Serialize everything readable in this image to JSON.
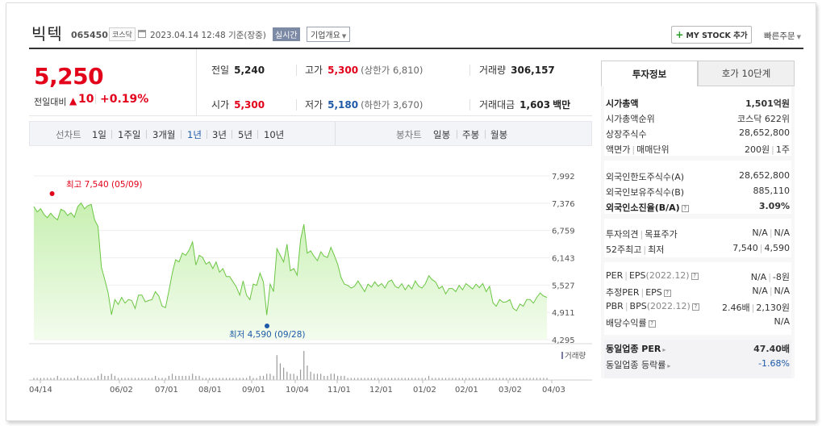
{
  "header": {
    "stock_name": "빅텍",
    "stock_code": "065450",
    "market": "코스닥",
    "datetime": "2023.04.14 12:48  기준(장중)",
    "realtime_badge": "실시간",
    "company_info_btn": "기업개요",
    "mystock_btn": "MY STOCK 추가",
    "quick_order_btn": "빠른주문"
  },
  "price": {
    "current": "5,250",
    "change_label": "전일대비",
    "change_value": "10",
    "change_rate": "+0.19%"
  },
  "stats": {
    "prev_close_label": "전일",
    "prev_close": "5,240",
    "high_label": "고가",
    "high": "5,300",
    "upper_limit": "(상한가 6,810)",
    "volume_label": "거래량",
    "volume": "306,157",
    "open_label": "시가",
    "open": "5,300",
    "low_label": "저가",
    "low": "5,180",
    "lower_limit": "(하한가 3,670)",
    "trade_value_label": "거래대금",
    "trade_value": "1,603",
    "trade_value_unit": "백만"
  },
  "chart_tabs": {
    "line_label": "선차트",
    "line_periods": [
      "1일",
      "1주일",
      "3개월",
      "1년",
      "3년",
      "5년",
      "10년"
    ],
    "active_period": "1년",
    "candle_label": "봉차트",
    "candle_periods": [
      "일봉",
      "주봉",
      "월봉"
    ]
  },
  "chart_data": {
    "type": "area",
    "series": [
      {
        "values": [
          7300,
          7180,
          7250,
          7120,
          7050,
          7150,
          7060,
          7000,
          7240,
          7200,
          7100,
          7160,
          7060,
          7300,
          7380,
          7250,
          7320,
          7350,
          7000,
          6850,
          5930,
          5650,
          5350,
          4860,
          5200,
          5090,
          5250,
          5120,
          5200,
          5180,
          5000,
          5300,
          5300,
          5150,
          5180,
          5200,
          5380,
          5280,
          5050,
          5020,
          5400,
          5800,
          6100,
          6050,
          6250,
          6200,
          6320,
          6500,
          5980,
          6200,
          6150,
          6000,
          6050,
          5900,
          6050,
          5820,
          5900,
          5720,
          5720,
          5600,
          5480,
          5300,
          5620,
          5300,
          5200,
          5550,
          5520,
          5800,
          5600,
          4850,
          5550,
          5380,
          6350,
          6200,
          6050,
          6450,
          5850,
          5900,
          5750,
          6550,
          6900,
          6250,
          6300,
          6180,
          6080,
          6280,
          6180,
          6150,
          6380,
          6200,
          6000,
          5700,
          5550,
          5520,
          5460,
          5500,
          5620,
          5500,
          5380,
          5550,
          5480,
          5600,
          5500,
          5560,
          5460,
          5600,
          5640,
          5500,
          5460,
          5560,
          5420,
          5530,
          5440,
          5620,
          5500,
          5460,
          5560,
          5740,
          5650,
          5600,
          5450,
          5500,
          5330,
          5450,
          5450,
          5380,
          5520,
          5420,
          5560,
          5500,
          5440,
          5550,
          5470,
          5560,
          5380,
          5500,
          5130,
          5050,
          5200,
          5140,
          5150,
          5200,
          5000,
          4950,
          5100,
          5050,
          5200,
          5200,
          5120,
          5250,
          5350,
          5280,
          5250
        ]
      }
    ],
    "volume": [
      1,
      1,
      1,
      1,
      1,
      1,
      1,
      2,
      1,
      1,
      1,
      1,
      1,
      2,
      1,
      1,
      1,
      1,
      1,
      2,
      3,
      2,
      2,
      3,
      2,
      1,
      1,
      1,
      1,
      1,
      1,
      1,
      1,
      1,
      1,
      1,
      2,
      1,
      1,
      1,
      2,
      3,
      2,
      2,
      2,
      2,
      2,
      3,
      2,
      2,
      1,
      1,
      1,
      1,
      1,
      1,
      1,
      1,
      1,
      1,
      1,
      1,
      1,
      1,
      2,
      1,
      1,
      2,
      2,
      3,
      3,
      2,
      12,
      8,
      6,
      4,
      3,
      3,
      2,
      5,
      14,
      7,
      4,
      3,
      3,
      3,
      2,
      2,
      3,
      3,
      2,
      2,
      2,
      1,
      1,
      1,
      1,
      1,
      1,
      1,
      1,
      1,
      1,
      1,
      1,
      1,
      1,
      1,
      1,
      1,
      1,
      1,
      1,
      1,
      1,
      1,
      1,
      2,
      1,
      1,
      1,
      1,
      1,
      1,
      1,
      1,
      1,
      1,
      1,
      1,
      1,
      1,
      1,
      1,
      1,
      1,
      1,
      1,
      1,
      1,
      1,
      1,
      1,
      1,
      1,
      1,
      1,
      1,
      1,
      1,
      1,
      1,
      1
    ],
    "ylim": [
      4295,
      7992
    ],
    "y_ticks": [
      "7,992",
      "7,376",
      "6,759",
      "6,143",
      "5,527",
      "4,911",
      "4,295"
    ],
    "x_ticks": [
      "04/14",
      "06/02",
      "07/01",
      "08/01",
      "09/01",
      "10/04",
      "11/01",
      "12/01",
      "01/02",
      "02/01",
      "03/02",
      "04/03"
    ],
    "max_label": "최고 7,540 (05/09)",
    "min_label": "최저 4,590 (09/28)",
    "volume_label": "거래량",
    "colors": {
      "line": "#6cc644",
      "fill_top": "#c8f0b2",
      "fill_bottom": "#f3fcee",
      "max": "#e2001a",
      "min": "#1e5aa8"
    }
  },
  "invest_info": {
    "tab_active": "투자정보",
    "tab_inactive": "호가 10단계",
    "market_cap_label": "시가총액",
    "market_cap": "1,501억원",
    "market_cap_rank_label": "시가총액순위",
    "market_cap_rank": "코스닥 622위",
    "shares_label": "상장주식수",
    "shares": "28,652,800",
    "par_label": "액면가",
    "unit_label": "매매단위",
    "par": "200원",
    "unit": "1주",
    "foreign_limit_label": "외국인한도주식수(A)",
    "foreign_limit": "28,652,800",
    "foreign_hold_label": "외국인보유주식수(B)",
    "foreign_hold": "885,110",
    "foreign_rate_label": "외국인소진율(B/A)",
    "foreign_rate": "3.09%",
    "opinion_label": "투자의견",
    "target_label": "목표주가",
    "opinion": "N/A",
    "target": "N/A",
    "w52_high_label": "52주최고",
    "w52_low_label": "최저",
    "w52_high": "7,540",
    "w52_low": "4,590",
    "per_label": "PER",
    "eps_label": "EPS",
    "eps_period": "(2022.12)",
    "per": "N/A",
    "eps": "-8원",
    "est_per_label": "추정PER",
    "est_eps_label": "EPS",
    "est_per": "N/A",
    "est_eps": "N/A",
    "pbr_label": "PBR",
    "bps_label": "BPS",
    "bps_period": "(2022.12)",
    "pbr": "2.46배",
    "bps": "2,130원",
    "dividend_label": "배당수익률",
    "dividend": "N/A",
    "industry_per_label": "동일업종 PER",
    "industry_per": "47.40배",
    "industry_rate_label": "동일업종 등락률",
    "industry_rate": "-1.68%"
  }
}
